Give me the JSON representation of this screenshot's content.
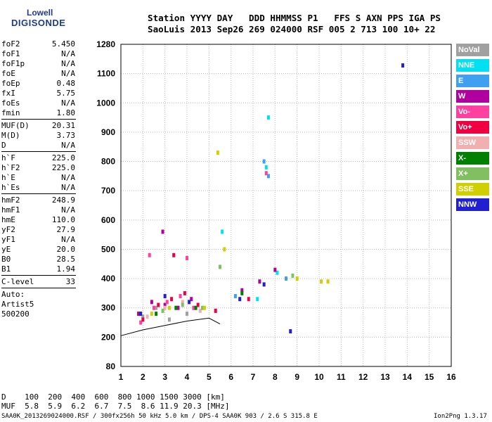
{
  "logo": {
    "line1": "Lowell",
    "line2": "DIGISONDE"
  },
  "header": {
    "line1": "Station YYYY DAY   DDD HHMMSS P1   FFS S AXN PPS IGA PS",
    "line2": "SaoLuis 2013 Sep26 269 024000 RSF 005 2 713 100 10+ 22"
  },
  "params": [
    {
      "name": "foF2",
      "value": "5.450"
    },
    {
      "name": "foF1",
      "value": "N/A"
    },
    {
      "name": "foF1p",
      "value": "N/A"
    },
    {
      "name": "foE",
      "value": "N/A"
    },
    {
      "name": "foEp",
      "value": "0.48"
    },
    {
      "name": "fxI",
      "value": "5.75"
    },
    {
      "name": "foEs",
      "value": "N/A"
    },
    {
      "name": "fmin",
      "value": "1.80"
    },
    {
      "name": "MUF(D)",
      "value": "20.31"
    },
    {
      "name": "M(D)",
      "value": "3.73"
    },
    {
      "name": "D",
      "value": "N/A"
    },
    {
      "name": "h`F",
      "value": "225.0"
    },
    {
      "name": "h`F2",
      "value": "225.0"
    },
    {
      "name": "h`E",
      "value": "N/A"
    },
    {
      "name": "h`Es",
      "value": "N/A"
    },
    {
      "name": "hmF2",
      "value": "248.9"
    },
    {
      "name": "hmF1",
      "value": "N/A"
    },
    {
      "name": "hmE",
      "value": "110.0"
    },
    {
      "name": "yF2",
      "value": "27.9"
    },
    {
      "name": "yF1",
      "value": "N/A"
    },
    {
      "name": "yE",
      "value": "20.0"
    },
    {
      "name": "B0",
      "value": "28.5"
    },
    {
      "name": "B1",
      "value": "1.94"
    },
    {
      "name": "C-level",
      "value": "33"
    },
    {
      "name": "Auto:",
      "value": ""
    },
    {
      "name": "Artist5",
      "value": ""
    },
    {
      "name": "500200",
      "value": ""
    }
  ],
  "footer": {
    "d_row": "D    100  200  400  600  800 1000 1500 3000 [km]",
    "muf_row": "MUF  5.8  5.9  6.2  6.7  7.5  8.6 11.9 20.3 [MHz]",
    "file_row": "SAA0K_2013269024000.RSF / 300fx256h 50 kHz 5.0 km / DPS-4 SAA0K 903 / 2.6 S 315.8 E",
    "version": "Ion2Png 1.3.17"
  },
  "legend": [
    {
      "label": "NoVal",
      "color": "#a0a0a0"
    },
    {
      "label": "NNE",
      "color": "#00e0f0"
    },
    {
      "label": "E",
      "color": "#40a0f0"
    },
    {
      "label": "W",
      "color": "#b000a0"
    },
    {
      "label": "Vo-",
      "color": "#ff40a0"
    },
    {
      "label": "Vo+",
      "color": "#f00040"
    },
    {
      "label": "SSW",
      "color": "#f0b0b0"
    },
    {
      "label": "X-",
      "color": "#008000"
    },
    {
      "label": "X+",
      "color": "#80c060"
    },
    {
      "label": "SSE",
      "color": "#d0d000"
    },
    {
      "label": "NNW",
      "color": "#2020d0"
    }
  ],
  "chart_data": {
    "type": "scatter",
    "title": "",
    "xlabel": "",
    "ylabel": "",
    "xlim": [
      1,
      16
    ],
    "ylim": [
      80,
      1280
    ],
    "x_ticks": [
      "1",
      "2",
      "3",
      "4",
      "5",
      "6",
      "7",
      "8",
      "9",
      "10",
      "11",
      "12",
      "13",
      "14",
      "15",
      "16"
    ],
    "y_ticks": [
      "80",
      "200",
      "300",
      "400",
      "500",
      "600",
      "700",
      "800",
      "900",
      "1000",
      "1100",
      "1280"
    ],
    "y_tick_values": [
      80,
      200,
      300,
      400,
      500,
      600,
      700,
      800,
      900,
      1000,
      1100,
      1280
    ],
    "grid": true,
    "series": [
      {
        "name": "NoVal",
        "points": [
          [
            2.0,
            270
          ],
          [
            2.6,
            300
          ],
          [
            3.2,
            260
          ],
          [
            4.0,
            280
          ]
        ]
      },
      {
        "name": "NNE",
        "points": [
          [
            7.6,
            780
          ],
          [
            7.2,
            330
          ],
          [
            8.1,
            420
          ],
          [
            5.6,
            560
          ],
          [
            7.7,
            950
          ]
        ]
      },
      {
        "name": "E",
        "points": [
          [
            7.7,
            750
          ],
          [
            8.5,
            400
          ],
          [
            6.2,
            340
          ],
          [
            7.5,
            800
          ]
        ]
      },
      {
        "name": "W",
        "points": [
          [
            1.8,
            280
          ],
          [
            2.4,
            320
          ],
          [
            3.0,
            310
          ],
          [
            3.6,
            300
          ],
          [
            4.2,
            330
          ],
          [
            6.5,
            360
          ],
          [
            7.3,
            390
          ],
          [
            8.0,
            430
          ],
          [
            2.9,
            560
          ]
        ]
      },
      {
        "name": "Vo-",
        "points": [
          [
            1.9,
            250
          ],
          [
            2.5,
            300
          ],
          [
            3.1,
            320
          ],
          [
            3.7,
            340
          ],
          [
            4.3,
            300
          ],
          [
            2.3,
            480
          ],
          [
            7.6,
            760
          ],
          [
            4.0,
            470
          ]
        ]
      },
      {
        "name": "Vo+",
        "points": [
          [
            2.0,
            260
          ],
          [
            2.7,
            310
          ],
          [
            3.3,
            330
          ],
          [
            3.9,
            350
          ],
          [
            4.5,
            310
          ],
          [
            5.3,
            290
          ],
          [
            6.8,
            330
          ],
          [
            3.4,
            480
          ]
        ]
      },
      {
        "name": "SSW",
        "points": [
          [
            2.2,
            270
          ],
          [
            3.0,
            300
          ],
          [
            3.8,
            320
          ],
          [
            4.6,
            290
          ]
        ]
      },
      {
        "name": "X-",
        "points": [
          [
            2.6,
            280
          ],
          [
            3.5,
            300
          ],
          [
            4.4,
            300
          ],
          [
            6.5,
            350
          ]
        ]
      },
      {
        "name": "X+",
        "points": [
          [
            2.9,
            290
          ],
          [
            3.8,
            310
          ],
          [
            4.7,
            300
          ],
          [
            8.8,
            410
          ],
          [
            5.5,
            440
          ]
        ]
      },
      {
        "name": "SSE",
        "points": [
          [
            2.4,
            280
          ],
          [
            3.2,
            300
          ],
          [
            4.8,
            300
          ],
          [
            9.0,
            400
          ],
          [
            10.1,
            390
          ],
          [
            10.4,
            390
          ],
          [
            5.4,
            830
          ],
          [
            5.7,
            500
          ]
        ]
      },
      {
        "name": "NNW",
        "points": [
          [
            1.9,
            280
          ],
          [
            3.0,
            340
          ],
          [
            4.1,
            320
          ],
          [
            6.4,
            330
          ],
          [
            7.5,
            380
          ],
          [
            8.7,
            220
          ],
          [
            13.8,
            1150
          ]
        ]
      }
    ],
    "trace": [
      [
        1.0,
        205
      ],
      [
        2.0,
        225
      ],
      [
        3.0,
        240
      ],
      [
        4.0,
        255
      ],
      [
        5.0,
        265
      ],
      [
        5.5,
        245
      ]
    ]
  }
}
